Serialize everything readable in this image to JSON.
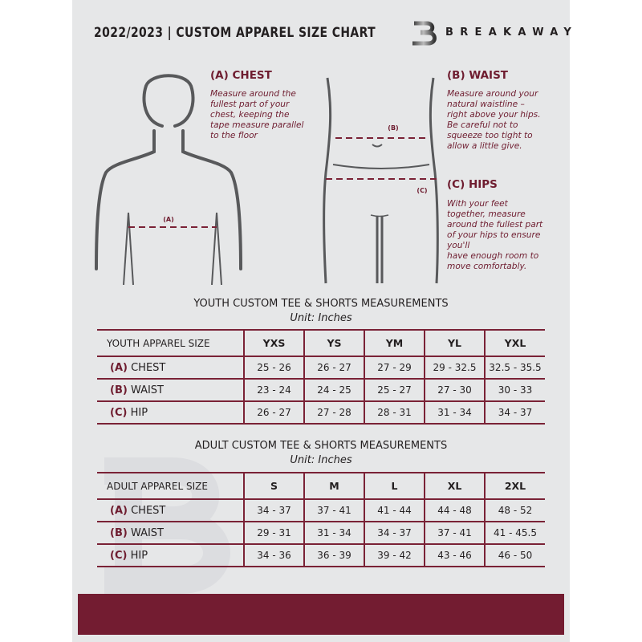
{
  "header": {
    "title": "2022/2023  |  CUSTOM APPAREL SIZE CHART",
    "brand": "BREAKAWAY"
  },
  "colors": {
    "accent": "#6e1c2f",
    "background": "#e6e7e8",
    "text": "#231f20"
  },
  "measures": {
    "chest": {
      "heading": "(A) CHEST",
      "text": "Measure around the\nfullest part of your\nchest, keeping the\ntape measure parallel\nto the floor",
      "marker": "(A)"
    },
    "waist": {
      "heading": "(B) WAIST",
      "text": "Measure around your\nnatural waistline –\nright above your hips.\nBe careful not to\nsqueeze too tight to\nallow a little give.",
      "marker": "(B)"
    },
    "hips": {
      "heading": "(C) HIPS",
      "text": "With your feet\ntogether, measure\naround the fullest part\nof your hips to ensure\nyou'll\nhave enough room to\nmove comfortably.",
      "marker": "(C)"
    }
  },
  "youth": {
    "title": "YOUTH CUSTOM TEE & SHORTS MEASUREMENTS",
    "unit": "Unit: Inches",
    "size_label": "YOUTH APPAREL SIZE",
    "sizes": [
      "YXS",
      "YS",
      "YM",
      "YL",
      "YXL"
    ],
    "rows": [
      {
        "code": "(A)",
        "name": "CHEST",
        "values": [
          "25 - 26",
          "26 - 27",
          "27 - 29",
          "29 - 32.5",
          "32.5 - 35.5"
        ]
      },
      {
        "code": "(B)",
        "name": "WAIST",
        "values": [
          "23 - 24",
          "24 - 25",
          "25 - 27",
          "27 - 30",
          "30 - 33"
        ]
      },
      {
        "code": "(C)",
        "name": "HIP",
        "values": [
          "26 - 27",
          "27 - 28",
          "28 - 31",
          "31 - 34",
          "34 - 37"
        ]
      }
    ]
  },
  "adult": {
    "title": "ADULT CUSTOM TEE & SHORTS MEASUREMENTS",
    "unit": "Unit: Inches",
    "size_label": "ADULT APPAREL SIZE",
    "sizes": [
      "S",
      "M",
      "L",
      "XL",
      "2XL"
    ],
    "rows": [
      {
        "code": "(A)",
        "name": "CHEST",
        "values": [
          "34 - 37",
          "37 - 41",
          "41 - 44",
          "44 - 48",
          "48 - 52"
        ]
      },
      {
        "code": "(B)",
        "name": "WAIST",
        "values": [
          "29 - 31",
          "31 - 34",
          "34 - 37",
          "37 - 41",
          "41 - 45.5"
        ]
      },
      {
        "code": "(C)",
        "name": "HIP",
        "values": [
          "34 - 36",
          "36 - 39",
          "39 - 42",
          "43 - 46",
          "46 - 50"
        ]
      }
    ]
  }
}
